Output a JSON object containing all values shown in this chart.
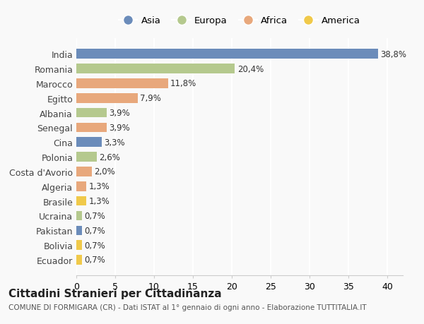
{
  "countries": [
    "India",
    "Romania",
    "Marocco",
    "Egitto",
    "Albania",
    "Senegal",
    "Cina",
    "Polonia",
    "Costa d'Avorio",
    "Algeria",
    "Brasile",
    "Ucraina",
    "Pakistan",
    "Bolivia",
    "Ecuador"
  ],
  "values": [
    38.8,
    20.4,
    11.8,
    7.9,
    3.9,
    3.9,
    3.3,
    2.6,
    2.0,
    1.3,
    1.3,
    0.7,
    0.7,
    0.7,
    0.7
  ],
  "labels": [
    "38,8%",
    "20,4%",
    "11,8%",
    "7,9%",
    "3,9%",
    "3,9%",
    "3,3%",
    "2,6%",
    "2,0%",
    "1,3%",
    "1,3%",
    "0,7%",
    "0,7%",
    "0,7%",
    "0,7%"
  ],
  "continents": [
    "Asia",
    "Europa",
    "Africa",
    "Africa",
    "Europa",
    "Africa",
    "Asia",
    "Europa",
    "Africa",
    "Africa",
    "America",
    "Europa",
    "Asia",
    "America",
    "America"
  ],
  "continent_colors": {
    "Asia": "#6b8cba",
    "Europa": "#b5c98e",
    "Africa": "#e8a87c",
    "America": "#f0c94a"
  },
  "legend_order": [
    "Asia",
    "Europa",
    "Africa",
    "America"
  ],
  "xlim": [
    0,
    42
  ],
  "xticks": [
    0,
    5,
    10,
    15,
    20,
    25,
    30,
    35,
    40
  ],
  "title": "Cittadini Stranieri per Cittadinanza",
  "subtitle": "COMUNE DI FORMIGARA (CR) - Dati ISTAT al 1° gennaio di ogni anno - Elaborazione TUTTITALIA.IT",
  "background_color": "#f9f9f9",
  "grid_color": "#ffffff",
  "bar_height": 0.65
}
